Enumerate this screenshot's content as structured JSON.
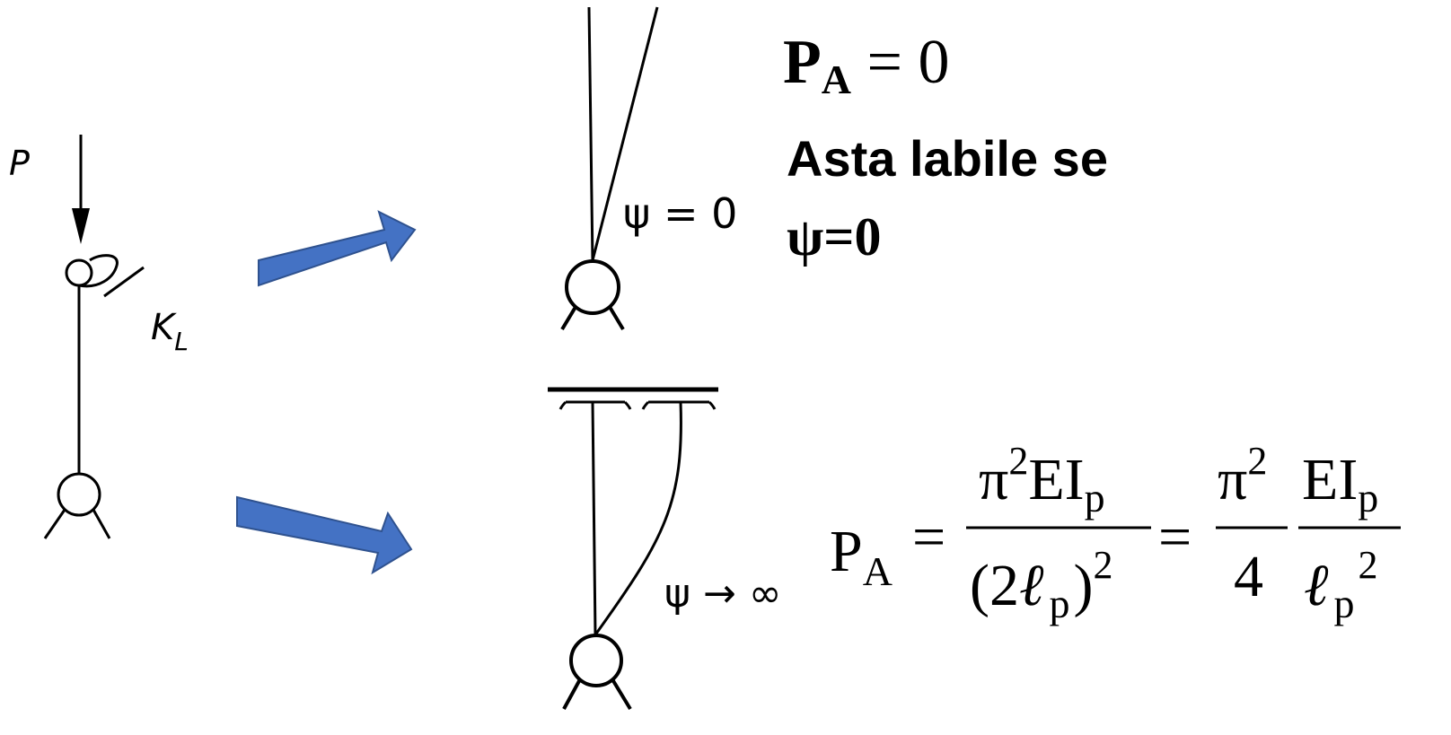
{
  "left_diagram": {
    "load_label": "P",
    "spring_label_main": "K",
    "spring_label_sub": "L"
  },
  "arrows": {
    "color": "#4472c4",
    "stroke_color": "#2f528f"
  },
  "top_case": {
    "psi_label": "ψ = 0",
    "result_P": "P",
    "result_sub": "A",
    "result_rhs": " = 0",
    "text_line": "Asta labile se",
    "condition": "ψ=0"
  },
  "bottom_case": {
    "psi_label": "ψ → ∞",
    "lhs_P": "P",
    "lhs_sub": "A",
    "eq1": "=",
    "eq2": "=",
    "frac1_num_pi": "π",
    "frac1_num_exp": "2",
    "frac1_num_rest": "EI",
    "frac1_num_sub": "p",
    "frac1_den_open": "(2",
    "frac1_den_ell": "ℓ",
    "frac1_den_sub": "p",
    "frac1_den_close": ")",
    "frac1_den_exp": "2",
    "frac2_num_pi": "π",
    "frac2_num_exp": "2",
    "frac2_den": "4",
    "frac3_num": "EI",
    "frac3_num_sub": "p",
    "frac3_den_ell": "ℓ",
    "frac3_den_sub": "p",
    "frac3_den_exp": "2"
  }
}
